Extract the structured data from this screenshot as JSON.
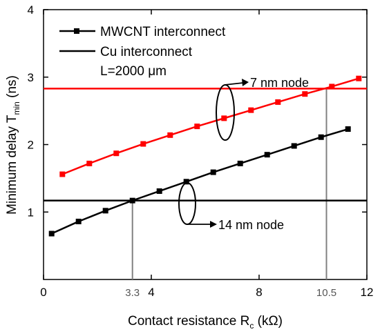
{
  "chart_data": {
    "type": "line",
    "xlabel": "Contact resistance R",
    "xlabel_sub": "c",
    "xlabel_unit": " (kΩ)",
    "ylabel": "Minimum delay T",
    "ylabel_sub": "min",
    "ylabel_unit": " (ns)",
    "xlim": [
      0,
      12
    ],
    "ylim": [
      0,
      4
    ],
    "x_ticks": [
      0,
      4,
      8,
      12
    ],
    "y_ticks": [
      1,
      2,
      3,
      4
    ],
    "x_marked_ticks": [
      3.3,
      10.5
    ],
    "x_marked_tick_labels": [
      "3.3",
      "10.5"
    ],
    "legend": {
      "placement": "top-left",
      "entries": [
        {
          "label": "MWCNT interconnect",
          "style": "line-square-marker"
        },
        {
          "label": "Cu interconnect",
          "style": "line"
        }
      ],
      "note": "L=2000 μm"
    },
    "series": [
      {
        "name": "MWCNT interconnect",
        "group": "7 nm node",
        "color": "#ff0000",
        "x": [
          0.7,
          1.7,
          2.7,
          3.7,
          4.7,
          5.7,
          6.7,
          7.7,
          8.7,
          9.7,
          10.7,
          11.7
        ],
        "y": [
          1.56,
          1.72,
          1.87,
          2.01,
          2.14,
          2.27,
          2.39,
          2.51,
          2.63,
          2.75,
          2.86,
          2.98
        ]
      },
      {
        "name": "MWCNT interconnect",
        "group": "14 nm node",
        "color": "#000000",
        "x": [
          0.3,
          1.3,
          2.3,
          3.3,
          4.3,
          5.3,
          6.3,
          7.3,
          8.3,
          9.3,
          10.3,
          11.3
        ],
        "y": [
          0.68,
          0.86,
          1.02,
          1.17,
          1.31,
          1.45,
          1.59,
          1.72,
          1.85,
          1.98,
          2.11,
          2.23
        ]
      }
    ],
    "hlines": [
      {
        "name": "Cu interconnect",
        "group": "7 nm node",
        "y": 2.83,
        "color": "#ff0000"
      },
      {
        "name": "Cu interconnect",
        "group": "14 nm node",
        "y": 1.17,
        "color": "#000000"
      }
    ],
    "vlines": [
      {
        "x": 3.3,
        "y_top": 1.17,
        "color": "#808080"
      },
      {
        "x": 10.5,
        "y_top": 2.83,
        "color": "#808080"
      }
    ],
    "annotations": [
      {
        "text": "7 nm node",
        "target_group": "7 nm node"
      },
      {
        "text": "14 nm node",
        "target_group": "14 nm node"
      }
    ]
  }
}
